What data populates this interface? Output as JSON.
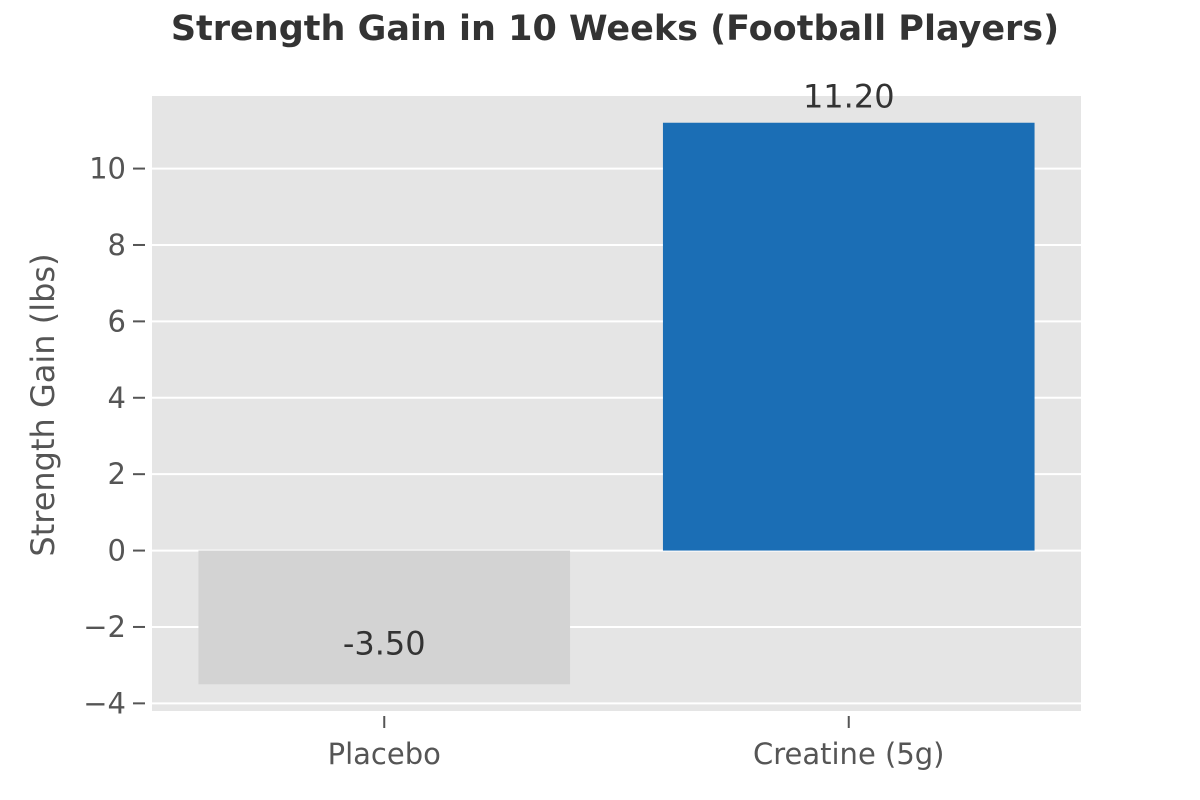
{
  "chart_data": {
    "type": "bar",
    "title": "Strength Gain in 10 Weeks (Football Players)",
    "xlabel": "",
    "ylabel": "Strength Gain (lbs)",
    "categories": [
      "Placebo",
      "Creatine (5g)"
    ],
    "values": [
      -3.5,
      11.2
    ],
    "value_labels": [
      "-3.50",
      "11.20"
    ],
    "ylim": [
      -4.2,
      11.9
    ],
    "yticks": [
      -4,
      -2,
      0,
      2,
      4,
      6,
      8,
      10
    ],
    "ytick_labels": [
      "−4",
      "−2",
      "0",
      "2",
      "4",
      "6",
      "8",
      "10"
    ],
    "bar_colors": [
      "#d3d3d3",
      "#1b6eb5"
    ],
    "plot_background": "#e5e5e5",
    "grid": true,
    "grid_color": "#ffffff",
    "legend": false
  }
}
